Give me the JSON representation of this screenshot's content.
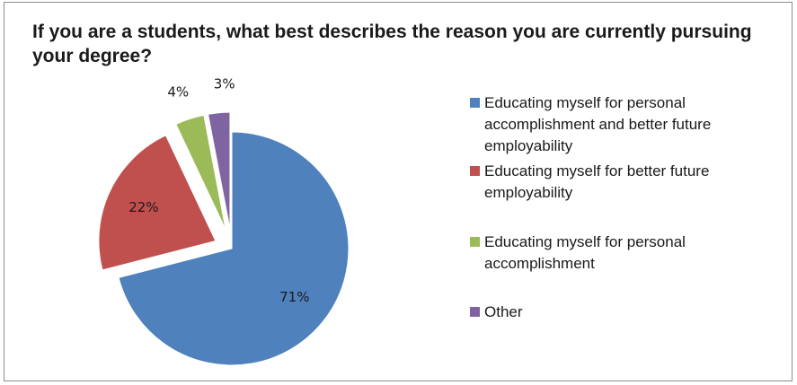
{
  "chart_data": {
    "type": "pie",
    "title": "If you are a students, what best describes the reason you are currently pursuing your degree?",
    "legend_position": "right",
    "exploded": true,
    "slices": [
      {
        "label": "Educating myself for personal accomplishment and better future employability",
        "value": 71,
        "display": "71%",
        "color": "#4f81bd"
      },
      {
        "label": "Educating myself for better future employability",
        "value": 22,
        "display": "22%",
        "color": "#c0504d"
      },
      {
        "label": "Educating myself for personal accomplishment",
        "value": 4,
        "display": "4%",
        "color": "#9bbb59"
      },
      {
        "label": "Other",
        "value": 3,
        "display": "3%",
        "color": "#8064a2"
      }
    ]
  }
}
